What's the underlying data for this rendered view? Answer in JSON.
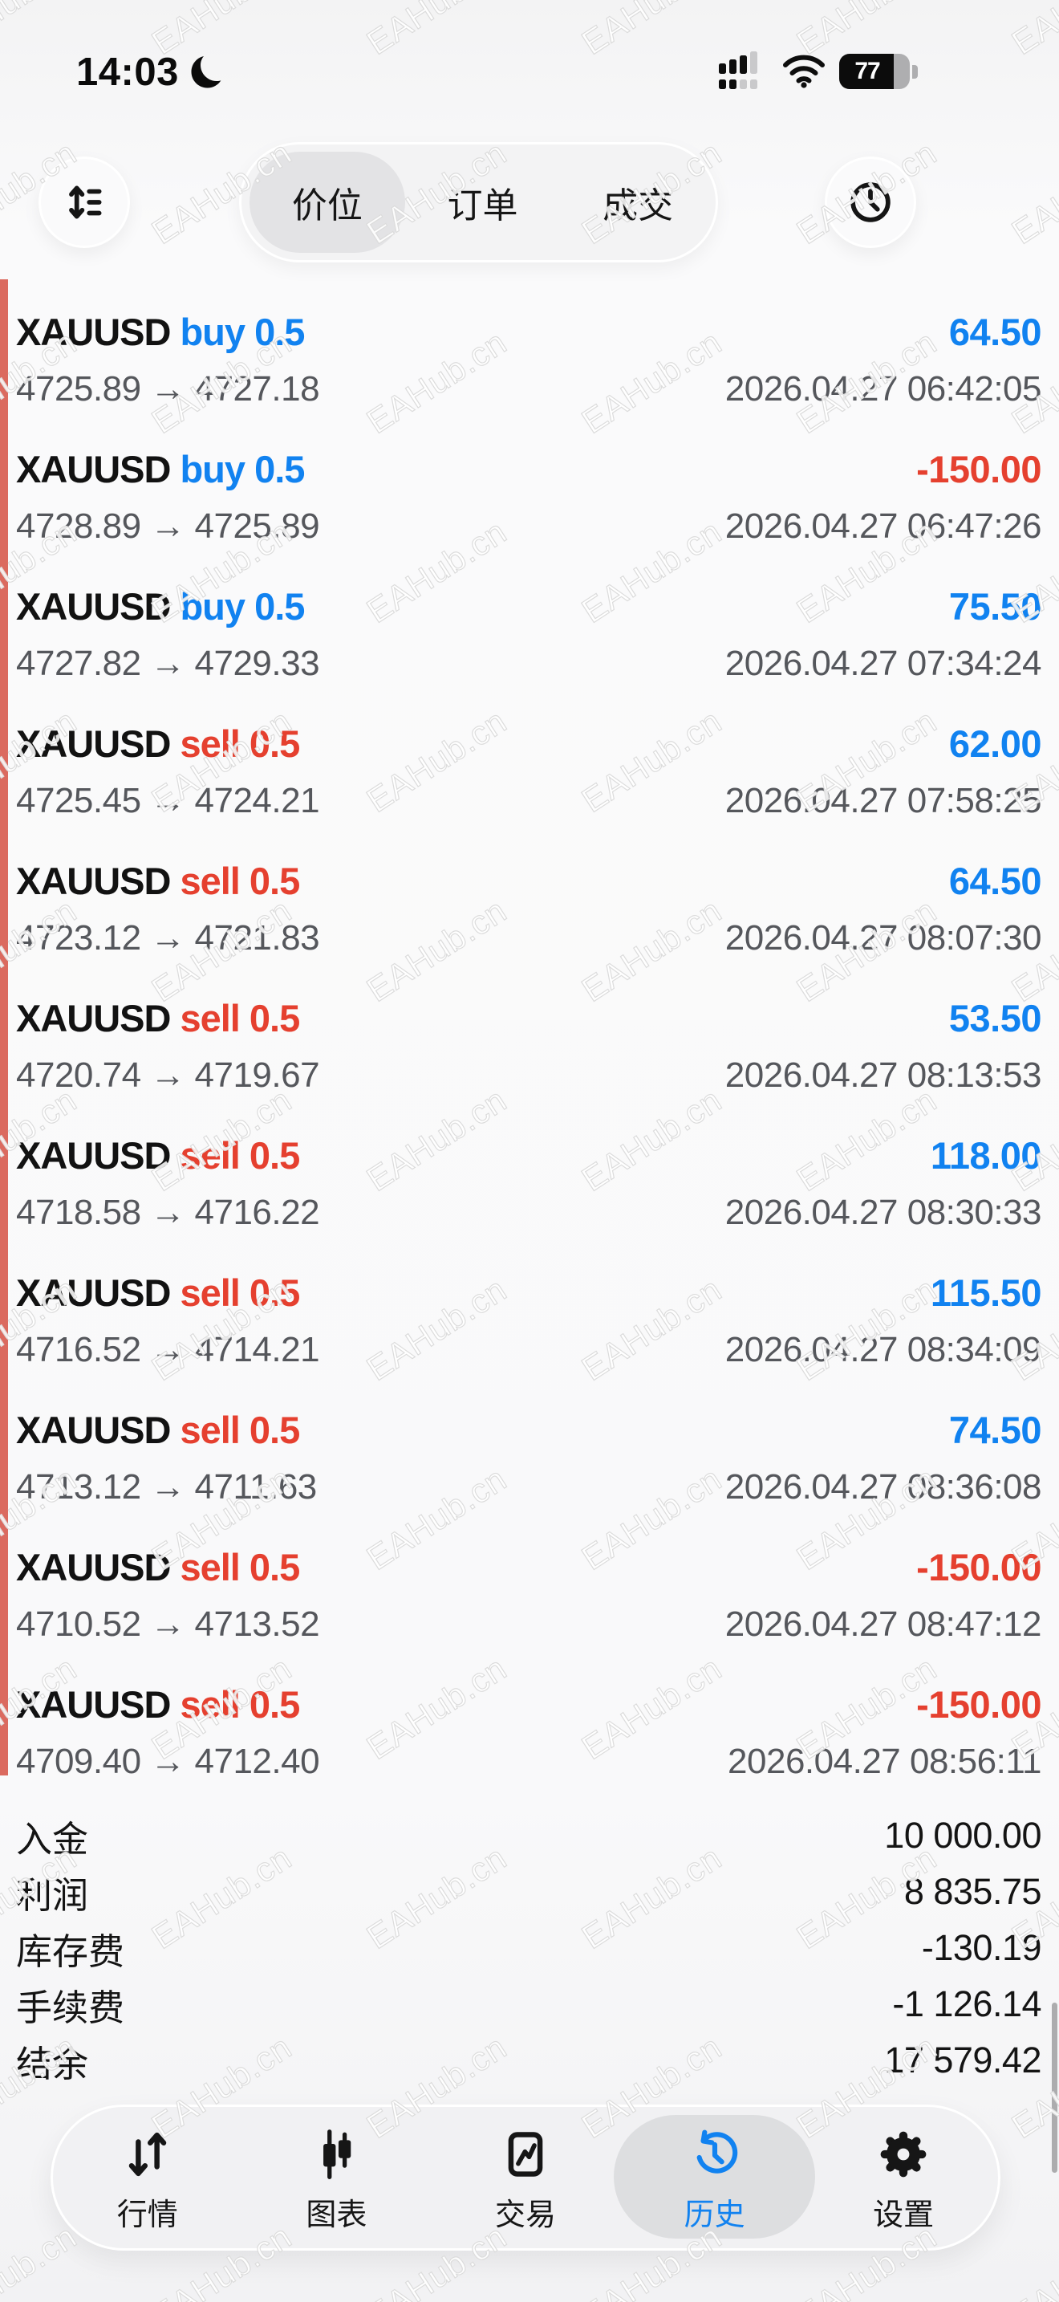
{
  "status_bar": {
    "time": "14:03",
    "moon_icon": "crescent-moon",
    "signal_icon": "dual-sim-signal",
    "wifi_icon": "wifi",
    "battery_percent": "77"
  },
  "header": {
    "sort_button_icon": "sort-lines",
    "history_button_icon": "clock",
    "tabs": [
      {
        "label": "价位",
        "selected": true
      },
      {
        "label": "订单",
        "selected": false
      },
      {
        "label": "成交",
        "selected": false
      }
    ]
  },
  "trades": [
    {
      "symbol": "XAUUSD",
      "side": "buy",
      "side_label": "buy 0.5",
      "profit": "64.50",
      "route": "4725.89 → 4727.18",
      "time": "2026.04.27 06:42:05"
    },
    {
      "symbol": "XAUUSD",
      "side": "buy",
      "side_label": "buy 0.5",
      "profit": "-150.00",
      "route": "4728.89 → 4725.89",
      "time": "2026.04.27 06:47:26"
    },
    {
      "symbol": "XAUUSD",
      "side": "buy",
      "side_label": "buy 0.5",
      "profit": "75.50",
      "route": "4727.82 → 4729.33",
      "time": "2026.04.27 07:34:24"
    },
    {
      "symbol": "XAUUSD",
      "side": "sell",
      "side_label": "sell 0.5",
      "profit": "62.00",
      "route": "4725.45 → 4724.21",
      "time": "2026.04.27 07:58:25"
    },
    {
      "symbol": "XAUUSD",
      "side": "sell",
      "side_label": "sell 0.5",
      "profit": "64.50",
      "route": "4723.12 → 4721.83",
      "time": "2026.04.27 08:07:30"
    },
    {
      "symbol": "XAUUSD",
      "side": "sell",
      "side_label": "sell 0.5",
      "profit": "53.50",
      "route": "4720.74 → 4719.67",
      "time": "2026.04.27 08:13:53"
    },
    {
      "symbol": "XAUUSD",
      "side": "sell",
      "side_label": "sell 0.5",
      "profit": "118.00",
      "route": "4718.58 → 4716.22",
      "time": "2026.04.27 08:30:33"
    },
    {
      "symbol": "XAUUSD",
      "side": "sell",
      "side_label": "sell 0.5",
      "profit": "115.50",
      "route": "4716.52 → 4714.21",
      "time": "2026.04.27 08:34:09"
    },
    {
      "symbol": "XAUUSD",
      "side": "sell",
      "side_label": "sell 0.5",
      "profit": "74.50",
      "route": "4713.12 → 4711.63",
      "time": "2026.04.27 08:36:08"
    },
    {
      "symbol": "XAUUSD",
      "side": "sell",
      "side_label": "sell 0.5",
      "profit": "-150.00",
      "route": "4710.52 → 4713.52",
      "time": "2026.04.27 08:47:12"
    },
    {
      "symbol": "XAUUSD",
      "side": "sell",
      "side_label": "sell 0.5",
      "profit": "-150.00",
      "route": "4709.40 → 4712.40",
      "time": "2026.04.27 08:56:11"
    }
  ],
  "summary": {
    "rows": [
      {
        "label": "入金",
        "value": "10 000.00"
      },
      {
        "label": "利润",
        "value": "8 835.75"
      },
      {
        "label": "库存费",
        "value": "-130.19"
      },
      {
        "label": "手续费",
        "value": "-1 126.14"
      },
      {
        "label": "结余",
        "value": "17 579.42"
      }
    ]
  },
  "bottom_nav": {
    "items": [
      {
        "label": "行情",
        "icon": "price-arrows-icon",
        "selected": false
      },
      {
        "label": "图表",
        "icon": "candlestick-chart-icon",
        "selected": false
      },
      {
        "label": "交易",
        "icon": "trade-chart-icon",
        "selected": false
      },
      {
        "label": "历史",
        "icon": "history-clock-icon",
        "selected": true
      },
      {
        "label": "设置",
        "icon": "gear-icon",
        "selected": false
      }
    ]
  },
  "watermark": {
    "text": "EAHub.cn"
  },
  "colors": {
    "accent_blue": "#1182f0",
    "sell_red": "#e5402f",
    "loss_bar_red": "#db6a5f",
    "muted_text": "#55575c"
  }
}
